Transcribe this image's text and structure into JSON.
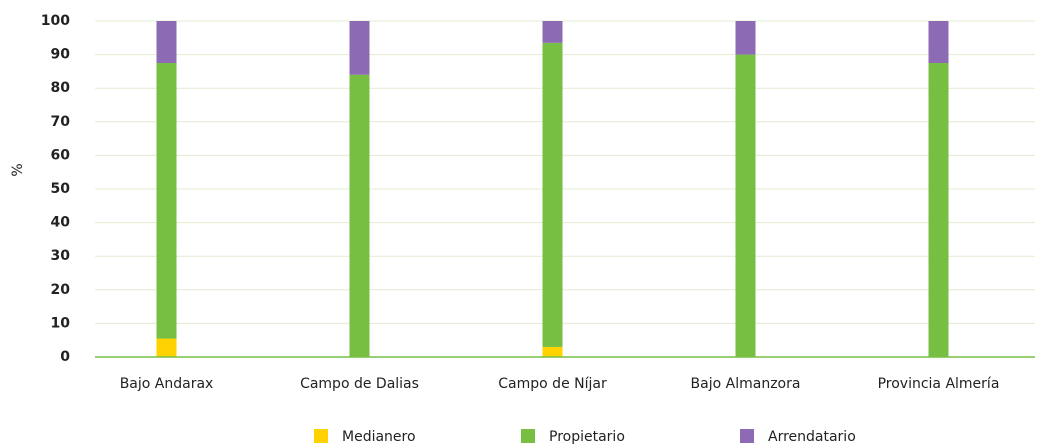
{
  "chart_data": {
    "type": "stacked_bar",
    "ylabel": "%",
    "categories": [
      "Bajo Andarax",
      "Campo de Dalias",
      "Campo de Níjar",
      "Bajo Almanzora",
      "Provincia Almería"
    ],
    "series": [
      {
        "name": "Medianero",
        "color": "#ffd200",
        "values": [
          5.5,
          0,
          3,
          0,
          0
        ]
      },
      {
        "name": "Propietario",
        "color": "#76bf43",
        "values": [
          82,
          84,
          90.5,
          90,
          87.5
        ]
      },
      {
        "name": "Arrendatario",
        "color": "#8d6ab4",
        "values": [
          12.5,
          16,
          6.5,
          10,
          12.5
        ]
      }
    ],
    "ylim": [
      0,
      100
    ],
    "yticks": [
      0,
      10,
      20,
      30,
      40,
      50,
      60,
      70,
      80,
      90,
      100
    ],
    "grid": true
  }
}
